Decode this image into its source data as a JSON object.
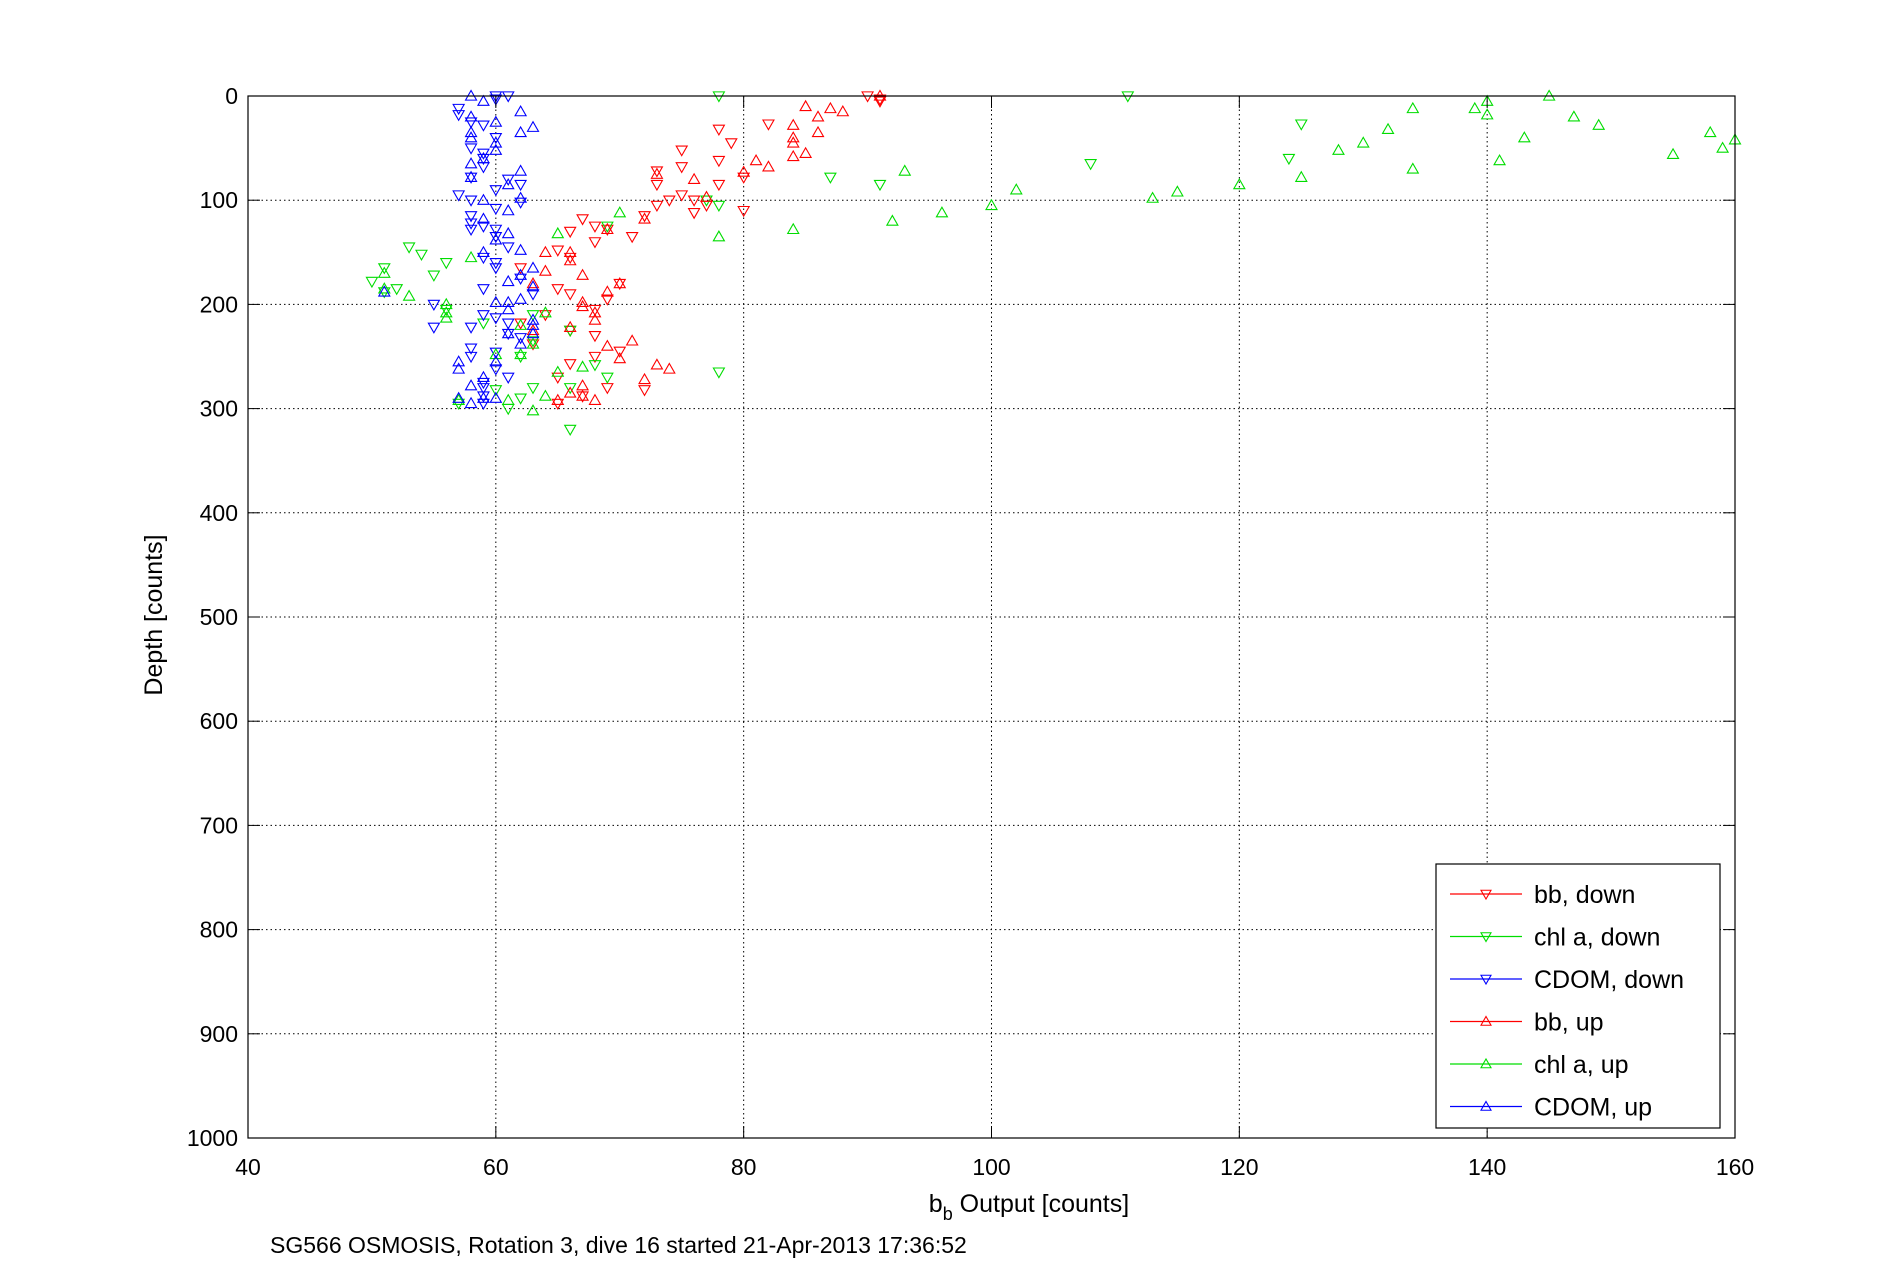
{
  "chart_data": {
    "type": "scatter",
    "xlabel_main": "b",
    "xlabel_sub": "b",
    "xlabel_rest": " Output [counts]",
    "ylabel": "Depth [counts]",
    "caption": "SG566 OSMOSIS, Rotation 3, dive 16 started 21-Apr-2013 17:36:52",
    "xlim": [
      40,
      160
    ],
    "ylim": [
      0,
      1000
    ],
    "y_reversed": true,
    "grid": true,
    "legend_position": "bottom-right",
    "xticks": [
      40,
      60,
      80,
      100,
      120,
      140,
      160
    ],
    "yticks": [
      0,
      100,
      200,
      300,
      400,
      500,
      600,
      700,
      800,
      900,
      1000
    ],
    "series": [
      {
        "name": "bb, down",
        "color": "#ff0000",
        "marker": "triangle-down",
        "points": [
          [
            90,
            0
          ],
          [
            91,
            3
          ],
          [
            91,
            5
          ],
          [
            82,
            27
          ],
          [
            78,
            32
          ],
          [
            79,
            45
          ],
          [
            75,
            52
          ],
          [
            78,
            62
          ],
          [
            75,
            68
          ],
          [
            73,
            72
          ],
          [
            80,
            78
          ],
          [
            78,
            85
          ],
          [
            73,
            85
          ],
          [
            75,
            95
          ],
          [
            74,
            100
          ],
          [
            76,
            100
          ],
          [
            73,
            105
          ],
          [
            77,
            105
          ],
          [
            72,
            115
          ],
          [
            76,
            112
          ],
          [
            67,
            118
          ],
          [
            80,
            110
          ],
          [
            68,
            125
          ],
          [
            69,
            128
          ],
          [
            71,
            135
          ],
          [
            66,
            130
          ],
          [
            68,
            140
          ],
          [
            65,
            148
          ],
          [
            66,
            155
          ],
          [
            62,
            165
          ],
          [
            70,
            180
          ],
          [
            65,
            185
          ],
          [
            66,
            190
          ],
          [
            69,
            195
          ],
          [
            64,
            210
          ],
          [
            68,
            205
          ],
          [
            62,
            218
          ],
          [
            66,
            225
          ],
          [
            68,
            230
          ],
          [
            70,
            245
          ],
          [
            63,
            238
          ],
          [
            68,
            250
          ],
          [
            66,
            257
          ],
          [
            65,
            270
          ],
          [
            69,
            280
          ],
          [
            72,
            282
          ],
          [
            67,
            288
          ],
          [
            65,
            295
          ]
        ]
      },
      {
        "name": "chl a, down",
        "color": "#00dd00",
        "marker": "triangle-down",
        "points": [
          [
            78,
            0
          ],
          [
            111,
            0
          ],
          [
            125,
            27
          ],
          [
            124,
            60
          ],
          [
            108,
            65
          ],
          [
            87,
            78
          ],
          [
            91,
            85
          ],
          [
            77,
            100
          ],
          [
            78,
            105
          ],
          [
            56,
            160
          ],
          [
            53,
            145
          ],
          [
            54,
            152
          ],
          [
            51,
            165
          ],
          [
            50,
            178
          ],
          [
            51,
            188
          ],
          [
            52,
            185
          ],
          [
            55,
            172
          ],
          [
            56,
            205
          ],
          [
            63,
            210
          ],
          [
            59,
            218
          ],
          [
            66,
            225
          ],
          [
            63,
            235
          ],
          [
            62,
            250
          ],
          [
            68,
            258
          ],
          [
            69,
            270
          ],
          [
            63,
            280
          ],
          [
            66,
            280
          ],
          [
            78,
            265
          ],
          [
            60,
            282
          ],
          [
            57,
            295
          ],
          [
            62,
            290
          ],
          [
            61,
            300
          ],
          [
            66,
            320
          ],
          [
            69,
            125
          ]
        ]
      },
      {
        "name": "CDOM, down",
        "color": "#0000ff",
        "marker": "triangle-down",
        "points": [
          [
            60,
            0
          ],
          [
            60,
            3
          ],
          [
            61,
            0
          ],
          [
            57,
            12
          ],
          [
            57,
            18
          ],
          [
            58,
            25
          ],
          [
            59,
            28
          ],
          [
            60,
            40
          ],
          [
            58,
            50
          ],
          [
            59,
            55
          ],
          [
            59,
            60
          ],
          [
            59,
            68
          ],
          [
            58,
            78
          ],
          [
            61,
            80
          ],
          [
            62,
            85
          ],
          [
            60,
            90
          ],
          [
            57,
            95
          ],
          [
            58,
            100
          ],
          [
            62,
            102
          ],
          [
            60,
            108
          ],
          [
            58,
            115
          ],
          [
            58,
            122
          ],
          [
            59,
            125
          ],
          [
            58,
            128
          ],
          [
            60,
            135
          ],
          [
            61,
            145
          ],
          [
            59,
            155
          ],
          [
            60,
            160
          ],
          [
            60,
            165
          ],
          [
            62,
            175
          ],
          [
            59,
            185
          ],
          [
            63,
            190
          ],
          [
            55,
            200
          ],
          [
            59,
            210
          ],
          [
            60,
            213
          ],
          [
            61,
            218
          ],
          [
            58,
            222
          ],
          [
            61,
            228
          ],
          [
            62,
            232
          ],
          [
            58,
            242
          ],
          [
            60,
            246
          ],
          [
            58,
            250
          ],
          [
            60,
            262
          ],
          [
            61,
            270
          ],
          [
            59,
            275
          ],
          [
            59,
            280
          ],
          [
            59,
            288
          ],
          [
            59,
            295
          ],
          [
            55,
            222
          ],
          [
            60,
            128
          ]
        ]
      },
      {
        "name": "bb, up",
        "color": "#ff0000",
        "marker": "triangle-up",
        "points": [
          [
            91,
            0
          ],
          [
            88,
            15
          ],
          [
            87,
            12
          ],
          [
            85,
            10
          ],
          [
            86,
            20
          ],
          [
            84,
            28
          ],
          [
            86,
            35
          ],
          [
            84,
            40
          ],
          [
            84,
            45
          ],
          [
            85,
            55
          ],
          [
            81,
            62
          ],
          [
            82,
            68
          ],
          [
            80,
            73
          ],
          [
            73,
            75
          ],
          [
            76,
            80
          ],
          [
            84,
            58
          ],
          [
            77,
            97
          ],
          [
            72,
            118
          ],
          [
            69,
            128
          ],
          [
            66,
            150
          ],
          [
            66,
            158
          ],
          [
            64,
            168
          ],
          [
            67,
            172
          ],
          [
            70,
            180
          ],
          [
            69,
            188
          ],
          [
            63,
            180
          ],
          [
            67,
            198
          ],
          [
            67,
            202
          ],
          [
            68,
            208
          ],
          [
            68,
            215
          ],
          [
            66,
            222
          ],
          [
            63,
            225
          ],
          [
            71,
            235
          ],
          [
            69,
            240
          ],
          [
            70,
            252
          ],
          [
            73,
            258
          ],
          [
            74,
            262
          ],
          [
            72,
            272
          ],
          [
            66,
            285
          ],
          [
            67,
            288
          ],
          [
            68,
            292
          ],
          [
            65,
            292
          ],
          [
            67,
            278
          ],
          [
            64,
            150
          ]
        ]
      },
      {
        "name": "chl a, up",
        "color": "#00dd00",
        "marker": "triangle-up",
        "points": [
          [
            140,
            5
          ],
          [
            145,
            0
          ],
          [
            139,
            12
          ],
          [
            134,
            12
          ],
          [
            140,
            18
          ],
          [
            147,
            20
          ],
          [
            149,
            28
          ],
          [
            132,
            32
          ],
          [
            158,
            35
          ],
          [
            160,
            42
          ],
          [
            143,
            40
          ],
          [
            130,
            45
          ],
          [
            128,
            52
          ],
          [
            159,
            50
          ],
          [
            155,
            56
          ],
          [
            141,
            62
          ],
          [
            134,
            70
          ],
          [
            125,
            78
          ],
          [
            93,
            72
          ],
          [
            120,
            85
          ],
          [
            102,
            90
          ],
          [
            115,
            92
          ],
          [
            113,
            98
          ],
          [
            100,
            105
          ],
          [
            96,
            112
          ],
          [
            92,
            120
          ],
          [
            84,
            128
          ],
          [
            78,
            135
          ],
          [
            65,
            132
          ],
          [
            58,
            155
          ],
          [
            51,
            170
          ],
          [
            53,
            192
          ],
          [
            56,
            200
          ],
          [
            56,
            208
          ],
          [
            56,
            213
          ],
          [
            64,
            208
          ],
          [
            62,
            220
          ],
          [
            63,
            238
          ],
          [
            60,
            248
          ],
          [
            62,
            248
          ],
          [
            65,
            265
          ],
          [
            67,
            260
          ],
          [
            64,
            288
          ],
          [
            61,
            292
          ],
          [
            57,
            292
          ],
          [
            63,
            302
          ],
          [
            51,
            185
          ],
          [
            70,
            112
          ]
        ]
      },
      {
        "name": "CDOM, up",
        "color": "#0000ff",
        "marker": "triangle-up",
        "points": [
          [
            58,
            0
          ],
          [
            59,
            5
          ],
          [
            62,
            15
          ],
          [
            58,
            20
          ],
          [
            60,
            25
          ],
          [
            63,
            30
          ],
          [
            62,
            35
          ],
          [
            58,
            35
          ],
          [
            58,
            40
          ],
          [
            60,
            45
          ],
          [
            60,
            52
          ],
          [
            59,
            60
          ],
          [
            58,
            65
          ],
          [
            62,
            72
          ],
          [
            58,
            78
          ],
          [
            61,
            85
          ],
          [
            62,
            98
          ],
          [
            59,
            100
          ],
          [
            61,
            110
          ],
          [
            59,
            118
          ],
          [
            61,
            132
          ],
          [
            60,
            138
          ],
          [
            59,
            150
          ],
          [
            62,
            148
          ],
          [
            63,
            165
          ],
          [
            62,
            172
          ],
          [
            61,
            178
          ],
          [
            63,
            183
          ],
          [
            62,
            195
          ],
          [
            60,
            198
          ],
          [
            61,
            205
          ],
          [
            63,
            215
          ],
          [
            61,
            228
          ],
          [
            62,
            238
          ],
          [
            60,
            255
          ],
          [
            57,
            255
          ],
          [
            57,
            262
          ],
          [
            59,
            270
          ],
          [
            58,
            278
          ],
          [
            57,
            290
          ],
          [
            59,
            290
          ],
          [
            58,
            295
          ],
          [
            60,
            290
          ],
          [
            63,
            220
          ],
          [
            63,
            228
          ],
          [
            61,
            198
          ],
          [
            51,
            188
          ]
        ]
      }
    ]
  }
}
